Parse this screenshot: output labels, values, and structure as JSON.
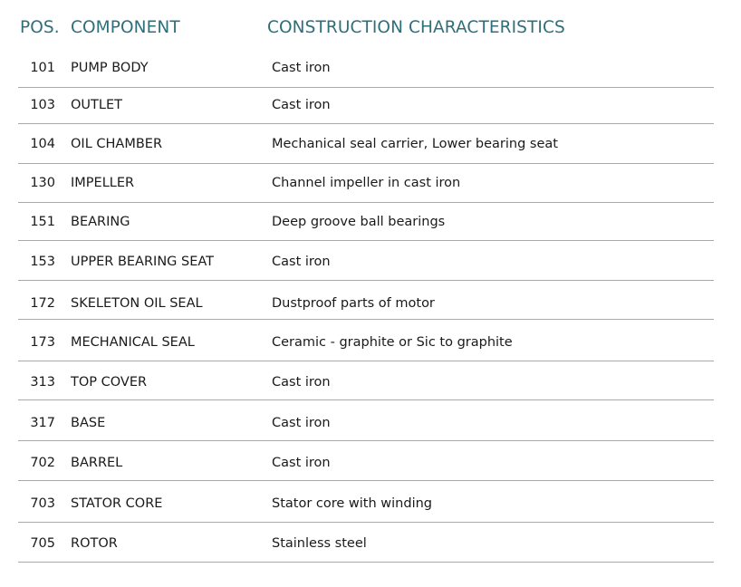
{
  "header": {
    "pos": "POS.",
    "component": "COMPONENT",
    "characteristics": "CONSTRUCTION CHARACTERISTICS"
  },
  "rows": [
    {
      "pos": "101",
      "component": "PUMP BODY",
      "characteristics": "Cast iron"
    },
    {
      "pos": "103",
      "component": "OUTLET",
      "characteristics": "Cast iron"
    },
    {
      "pos": "104",
      "component": "OIL CHAMBER",
      "characteristics": "Mechanical seal carrier, Lower bearing seat"
    },
    {
      "pos": "130",
      "component": "IMPELLER",
      "characteristics": "Channel impeller in cast iron"
    },
    {
      "pos": "151",
      "component": "BEARING",
      "characteristics": "Deep  groove ball bearings"
    },
    {
      "pos": "153",
      "component": "UPPER BEARING SEAT",
      "characteristics": "Cast iron"
    },
    {
      "pos": "172",
      "component": "SKELETON OIL SEAL",
      "characteristics": "Dustproof parts of motor"
    },
    {
      "pos": "173",
      "component": "MECHANICAL SEAL",
      "characteristics": "Ceramic - graphite or Sic to graphite"
    },
    {
      "pos": "313",
      "component": "TOP COVER",
      "characteristics": "Cast iron"
    },
    {
      "pos": "317",
      "component": "BASE",
      "characteristics": "Cast iron"
    },
    {
      "pos": "702",
      "component": "BARREL",
      "characteristics": "Cast iron"
    },
    {
      "pos": "703",
      "component": "STATOR CORE",
      "characteristics": "Stator core with winding"
    },
    {
      "pos": "705",
      "component": "ROTOR",
      "characteristics": "Stainless steel"
    }
  ],
  "colors": {
    "header": "#2f6f7b",
    "rule": "#a9a9a9"
  }
}
